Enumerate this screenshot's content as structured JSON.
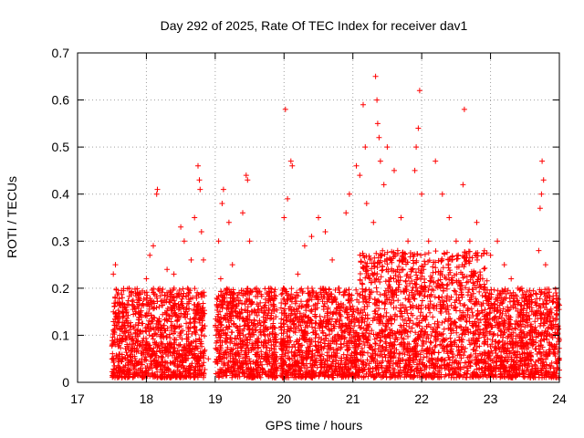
{
  "chart_data": {
    "type": "scatter",
    "title": "Day 292 of 2025, Rate Of TEC Index for receiver dav1",
    "xlabel": "GPS time / hours",
    "ylabel": "ROTI / TECUs",
    "xlim": [
      17,
      24
    ],
    "ylim": [
      0,
      0.7
    ],
    "x_ticks": [
      17,
      18,
      19,
      20,
      21,
      22,
      23,
      24
    ],
    "x_tick_labels": [
      "17",
      "18",
      "19",
      "20",
      "21",
      "22",
      "23",
      "24"
    ],
    "y_ticks": [
      0,
      0.1,
      0.2,
      0.3,
      0.4,
      0.5,
      0.6,
      0.7
    ],
    "y_tick_labels": [
      "0",
      "0.1",
      "0.2",
      "0.3",
      "0.4",
      "0.5",
      "0.6",
      "0.7"
    ],
    "grid": true,
    "marker": "+",
    "color": "#ff0000",
    "series": [
      {
        "name": "ROTI",
        "points": [
          [
            17.5,
            0.05
          ],
          [
            17.52,
            0.23
          ],
          [
            17.55,
            0.25
          ],
          [
            17.58,
            0.14
          ],
          [
            17.6,
            0.06
          ],
          [
            17.65,
            0.18
          ],
          [
            17.7,
            0.09
          ],
          [
            17.75,
            0.2
          ],
          [
            17.8,
            0.04
          ],
          [
            17.85,
            0.15
          ],
          [
            17.9,
            0.19
          ],
          [
            17.95,
            0.07
          ],
          [
            18.0,
            0.22
          ],
          [
            18.05,
            0.27
          ],
          [
            18.1,
            0.29
          ],
          [
            18.15,
            0.4
          ],
          [
            18.16,
            0.41
          ],
          [
            18.2,
            0.11
          ],
          [
            18.3,
            0.24
          ],
          [
            18.4,
            0.23
          ],
          [
            18.5,
            0.33
          ],
          [
            18.55,
            0.3
          ],
          [
            18.6,
            0.2
          ],
          [
            18.65,
            0.26
          ],
          [
            18.7,
            0.35
          ],
          [
            18.75,
            0.46
          ],
          [
            18.77,
            0.43
          ],
          [
            18.78,
            0.41
          ],
          [
            18.8,
            0.32
          ],
          [
            18.83,
            0.26
          ],
          [
            18.85,
            0.12
          ],
          [
            18.9,
            0.05
          ],
          [
            19.05,
            0.3
          ],
          [
            19.08,
            0.22
          ],
          [
            19.1,
            0.38
          ],
          [
            19.12,
            0.41
          ],
          [
            19.2,
            0.34
          ],
          [
            19.25,
            0.25
          ],
          [
            19.3,
            0.15
          ],
          [
            19.4,
            0.36
          ],
          [
            19.45,
            0.44
          ],
          [
            19.47,
            0.43
          ],
          [
            19.5,
            0.3
          ],
          [
            19.6,
            0.2
          ],
          [
            19.7,
            0.12
          ],
          [
            19.8,
            0.2
          ],
          [
            19.85,
            0.05
          ],
          [
            20.0,
            0.35
          ],
          [
            20.02,
            0.58
          ],
          [
            20.05,
            0.39
          ],
          [
            20.1,
            0.47
          ],
          [
            20.12,
            0.46
          ],
          [
            20.2,
            0.23
          ],
          [
            20.3,
            0.29
          ],
          [
            20.4,
            0.31
          ],
          [
            20.5,
            0.35
          ],
          [
            20.6,
            0.32
          ],
          [
            20.7,
            0.26
          ],
          [
            20.8,
            0.2
          ],
          [
            20.9,
            0.36
          ],
          [
            20.95,
            0.4
          ],
          [
            21.05,
            0.46
          ],
          [
            21.1,
            0.44
          ],
          [
            21.15,
            0.59
          ],
          [
            21.18,
            0.5
          ],
          [
            21.2,
            0.38
          ],
          [
            21.3,
            0.34
          ],
          [
            21.33,
            0.65
          ],
          [
            21.35,
            0.6
          ],
          [
            21.36,
            0.55
          ],
          [
            21.38,
            0.52
          ],
          [
            21.4,
            0.47
          ],
          [
            21.45,
            0.42
          ],
          [
            21.5,
            0.5
          ],
          [
            21.6,
            0.45
          ],
          [
            21.7,
            0.35
          ],
          [
            21.8,
            0.3
          ],
          [
            21.9,
            0.45
          ],
          [
            21.92,
            0.5
          ],
          [
            21.95,
            0.54
          ],
          [
            21.97,
            0.62
          ],
          [
            22.0,
            0.4
          ],
          [
            22.1,
            0.3
          ],
          [
            22.2,
            0.47
          ],
          [
            22.3,
            0.4
          ],
          [
            22.4,
            0.35
          ],
          [
            22.5,
            0.3
          ],
          [
            22.6,
            0.42
          ],
          [
            22.62,
            0.58
          ],
          [
            22.7,
            0.3
          ],
          [
            22.8,
            0.34
          ],
          [
            22.9,
            0.2
          ],
          [
            23.0,
            0.27
          ],
          [
            23.1,
            0.3
          ],
          [
            23.2,
            0.25
          ],
          [
            23.3,
            0.22
          ],
          [
            23.4,
            0.2
          ],
          [
            23.5,
            0.18
          ],
          [
            23.6,
            0.15
          ],
          [
            23.65,
            0.17
          ],
          [
            23.7,
            0.28
          ],
          [
            23.72,
            0.37
          ],
          [
            23.74,
            0.4
          ],
          [
            23.75,
            0.47
          ],
          [
            23.77,
            0.43
          ],
          [
            23.8,
            0.25
          ],
          [
            23.9,
            0.17
          ],
          [
            23.95,
            0.19
          ],
          [
            23.98,
            0.12
          ]
        ]
      }
    ],
    "dense_band": {
      "note": "Thousands of overlapping + markers fill the lower band in these ROTI ranges",
      "segments": [
        {
          "x_range": [
            17.5,
            18.85
          ],
          "y_range": [
            0.01,
            0.2
          ]
        },
        {
          "x_range": [
            19.0,
            19.9
          ],
          "y_range": [
            0.01,
            0.2
          ]
        },
        {
          "x_range": [
            19.95,
            21.1
          ],
          "y_range": [
            0.01,
            0.2
          ]
        },
        {
          "x_range": [
            21.1,
            22.95
          ],
          "y_range": [
            0.01,
            0.28
          ]
        },
        {
          "x_range": [
            22.95,
            24.0
          ],
          "y_range": [
            0.01,
            0.2
          ]
        }
      ],
      "count": 5200,
      "seed": 292
    }
  }
}
